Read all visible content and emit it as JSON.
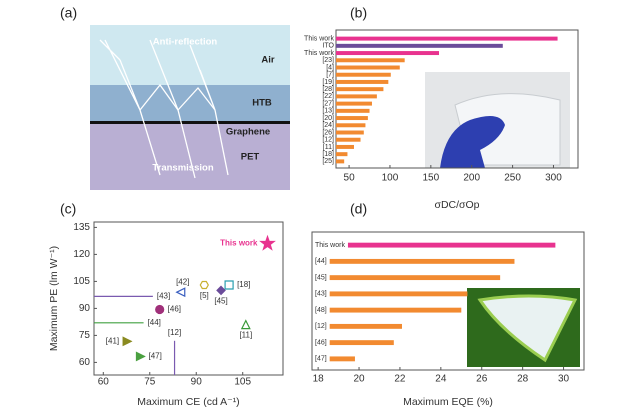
{
  "diagram": {
    "label": "(a)",
    "texts": [
      "Anti-reflection",
      "Air",
      "HTB",
      "Graphene",
      "PET",
      "Transmission"
    ]
  },
  "chart_data": [
    {
      "label": "(b)",
      "type": "hbar",
      "xlabel": "σDC/σOp",
      "categories": [
        "This work",
        "ITO",
        "This work",
        "[23]",
        "[4]",
        "[7]",
        "[19]",
        "[28]",
        "[22]",
        "[27]",
        "[13]",
        "[20]",
        "[24]",
        "[26]",
        "[12]",
        "[11]",
        "[18]",
        "[25]"
      ],
      "values": [
        305,
        238,
        160,
        118,
        112,
        101,
        98,
        92,
        84,
        78,
        75,
        73,
        70,
        68,
        64,
        56,
        48,
        44
      ],
      "colors": [
        "#e8338f",
        "#6b4c9a",
        "#e8338f",
        "#f28a30",
        "#f28a30",
        "#f28a30",
        "#f28a30",
        "#f28a30",
        "#f28a30",
        "#f28a30",
        "#f28a30",
        "#f28a30",
        "#f28a30",
        "#f28a30",
        "#f28a30",
        "#f28a30",
        "#f28a30",
        "#f28a30"
      ],
      "xlim": [
        34,
        330
      ],
      "xticks": [
        50,
        100,
        150,
        200,
        250,
        300
      ]
    },
    {
      "label": "(c)",
      "type": "scatter",
      "xlabel": "Maximum CE (cd A⁻¹)",
      "ylabel": "Maximum PE (lm W⁻¹)",
      "xlim": [
        57,
        118
      ],
      "ylim": [
        53,
        138
      ],
      "xticks": [
        60,
        75,
        90,
        105
      ],
      "yticks": [
        60,
        75,
        90,
        105,
        120,
        135
      ],
      "series": [
        {
          "name": "This work",
          "color": "#e8338f",
          "marker": "star",
          "filled": true,
          "x": [
            113
          ],
          "values": [
            126
          ]
        },
        {
          "name": "[42]",
          "color": "#3a5fc0",
          "marker": "tri-left",
          "filled": false,
          "x": [
            85
          ],
          "values": [
            99
          ]
        },
        {
          "name": "[5]",
          "color": "#c8b030",
          "marker": "hexagon",
          "filled": false,
          "x": [
            92.6
          ],
          "values": [
            103
          ]
        },
        {
          "name": "[18]",
          "color": "#2a9fb0",
          "marker": "square",
          "filled": false,
          "x": [
            100.6
          ],
          "values": [
            103
          ]
        },
        {
          "name": "[45]",
          "color": "#6b4c9a",
          "marker": "diamond",
          "filled": true,
          "x": [
            98
          ],
          "values": [
            100
          ]
        },
        {
          "name": "[46]",
          "color": "#a0307a",
          "marker": "circle",
          "filled": true,
          "x": [
            78.2
          ],
          "values": [
            89.4
          ]
        },
        {
          "name": "[11]",
          "color": "#3a9a3a",
          "marker": "tri-up",
          "filled": false,
          "x": [
            106
          ],
          "values": [
            81
          ]
        },
        {
          "name": "[41]",
          "color": "#8a8a20",
          "marker": "tri-right",
          "filled": true,
          "x": [
            67.7
          ],
          "values": [
            71.7
          ]
        },
        {
          "name": "[47]",
          "color": "#4aa040",
          "marker": "tri-right",
          "filled": true,
          "x": [
            72
          ],
          "values": [
            63.3
          ]
        },
        {
          "name": "[43]",
          "color": "#7a5ab0",
          "marker": "hline",
          "filled": true,
          "x": [
            76
          ],
          "values": [
            96.7
          ]
        },
        {
          "name": "[44]",
          "color": "#40a040",
          "marker": "hline",
          "filled": true,
          "x": [
            73
          ],
          "values": [
            82
          ]
        },
        {
          "name": "[12]",
          "color": "#7a5ab0",
          "marker": "vline",
          "filled": true,
          "x": [
            83
          ],
          "values": [
            72
          ]
        }
      ]
    },
    {
      "label": "(d)",
      "type": "hbar",
      "xlabel": "Maximum EQE (%)",
      "categories": [
        "This work",
        "[44]",
        "[45]",
        "[43]",
        "[48]",
        "[12]",
        "[46]",
        "[47]"
      ],
      "values": [
        29.6,
        27.6,
        26.9,
        25.3,
        25.0,
        22.1,
        21.7,
        19.8
      ],
      "colors": [
        "#e8338f",
        "#f28a30",
        "#f28a30",
        "#f28a30",
        "#f28a30",
        "#f28a30",
        "#f28a30",
        "#f28a30"
      ],
      "xlim": [
        17.7,
        31
      ],
      "xticks": [
        18,
        20,
        22,
        24,
        26,
        28,
        30
      ]
    }
  ]
}
